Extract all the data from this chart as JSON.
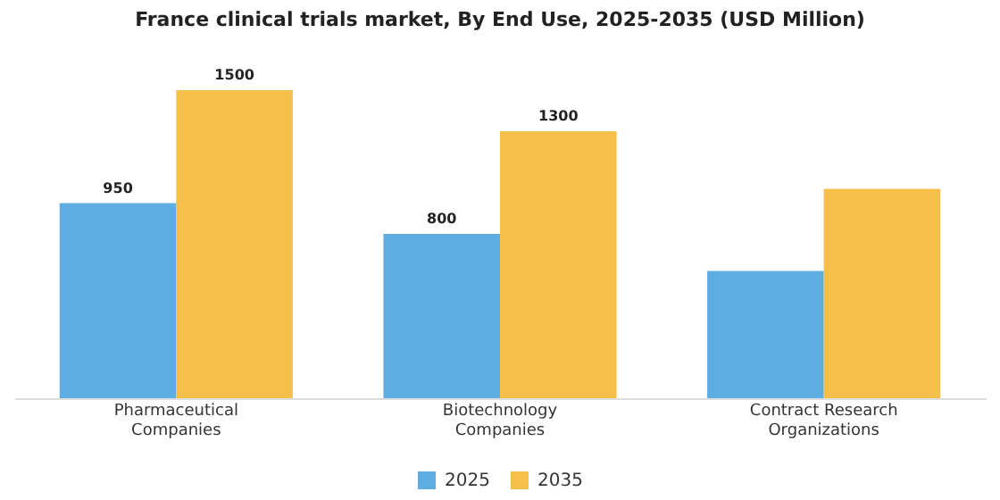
{
  "chart_data": {
    "type": "bar",
    "title": "France clinical trials market, By End Use, 2025-2035 (USD Million)",
    "categories": [
      "Pharmaceutical Companies",
      "Biotechnology Companies",
      "Contract Research Organizations"
    ],
    "series": [
      {
        "name": "2025",
        "color": "#5dade2",
        "values": [
          950,
          800,
          620
        ],
        "value_labels": [
          "950",
          "800",
          null
        ]
      },
      {
        "name": "2035",
        "color": "#f5c04a",
        "values": [
          1500,
          1300,
          1020
        ],
        "value_labels": [
          "1500",
          "1300",
          null
        ]
      }
    ],
    "legend": "bottom"
  }
}
